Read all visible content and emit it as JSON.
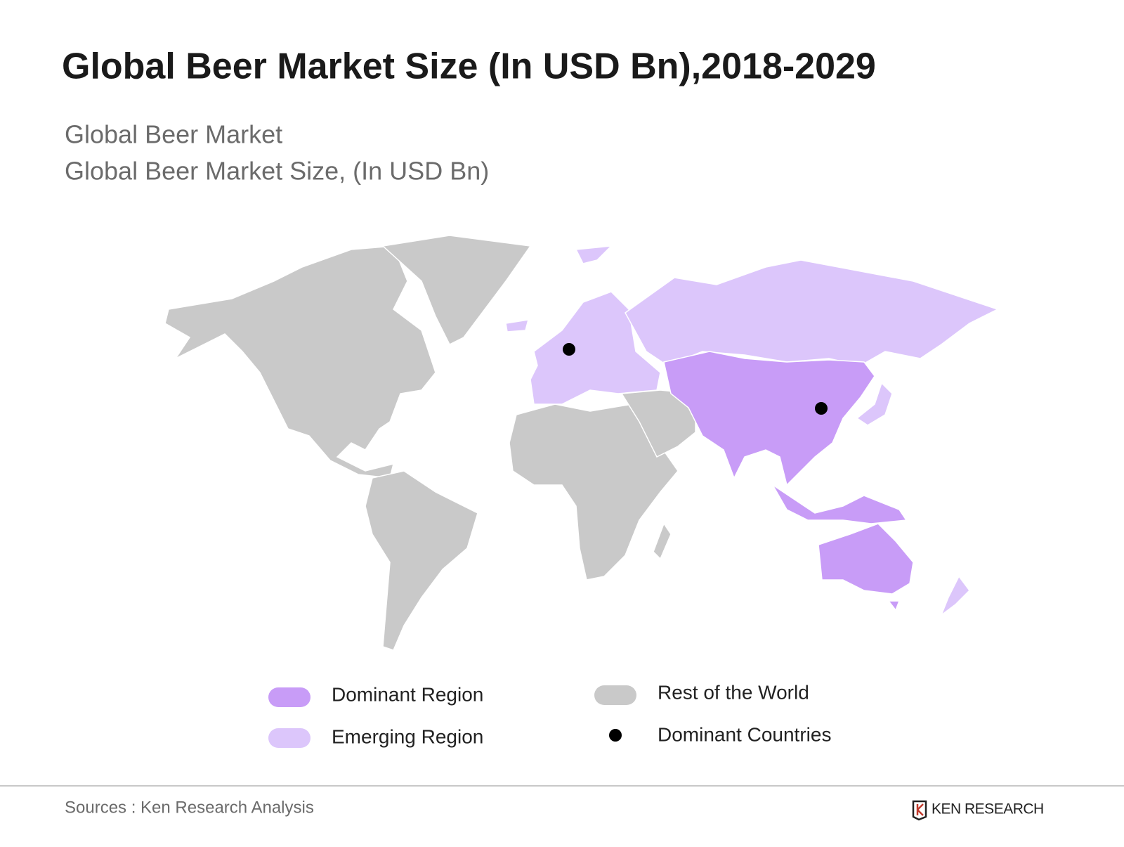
{
  "header": {
    "title": "Global Beer Market Size (In USD Bn),2018-2029",
    "subtitle": [
      "Global Beer Market",
      "Global Beer Market Size, (In USD Bn)"
    ]
  },
  "legend": [
    {
      "label": "Dominant Region",
      "color": "#c89cf7"
    },
    {
      "label": "Emerging Region",
      "color": "#dcc6fb"
    },
    {
      "label": "Rest of the World",
      "color": "#c9c9c9"
    },
    {
      "label": "Dominant Countries",
      "color": "#000000"
    }
  ],
  "footer": {
    "source": "Sources : Ken Research Analysis",
    "logo": "KEN RESEARCH"
  }
}
